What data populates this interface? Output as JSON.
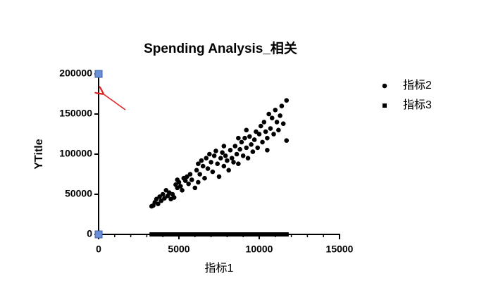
{
  "chart_data": {
    "type": "scatter",
    "title": "Spending  Analysis_相关",
    "x_label": "指标1",
    "y_label": "YTitle",
    "xlim": [
      0,
      15000
    ],
    "xticks": [
      0,
      5000,
      10000,
      15000
    ],
    "xminorticks": [
      1000,
      2000,
      3000,
      4000,
      6000,
      7000,
      8000,
      9000,
      11000,
      12000,
      13000,
      14000
    ],
    "ylim": [
      0,
      200000
    ],
    "yticks": [
      0,
      50000,
      100000,
      150000,
      200000
    ],
    "grid": false,
    "legend": "right",
    "series": [
      {
        "name": "指标2",
        "color": "#000000",
        "marker": "circle",
        "x": [
          3400,
          3500,
          3600,
          3700,
          3800,
          3900,
          4000,
          4100,
          4200,
          4300,
          4400,
          4500,
          4600,
          4700,
          4800,
          4900,
          5000,
          5100,
          5200,
          5300,
          5400,
          5500,
          5600,
          5700,
          5800,
          6000,
          6100,
          6200,
          6300,
          6400,
          6500,
          6600,
          6700,
          6800,
          6900,
          7000,
          7100,
          7200,
          7300,
          7400,
          7500,
          7600,
          7700,
          7800,
          7900,
          8000,
          8100,
          8200,
          8300,
          8400,
          8500,
          8600,
          8700,
          8800,
          8900,
          9000,
          9100,
          9200,
          9300,
          9400,
          9500,
          9600,
          9700,
          9800,
          9900,
          10000,
          10100,
          10200,
          10300,
          10400,
          10500,
          10600,
          10700,
          10800,
          10900,
          11000,
          11100,
          11200,
          11300,
          11400,
          11500,
          11700,
          11700,
          10500,
          9200,
          8700,
          7800,
          6200,
          4900,
          3300
        ],
        "values": [
          36000,
          40000,
          44000,
          38000,
          47000,
          42000,
          50000,
          45000,
          55000,
          48000,
          52000,
          44000,
          50000,
          46000,
          62000,
          58000,
          65000,
          60000,
          55000,
          70000,
          67000,
          72000,
          63000,
          75000,
          68000,
          58000,
          80000,
          88000,
          75000,
          92000,
          85000,
          70000,
          95000,
          82000,
          100000,
          90000,
          78000,
          98000,
          104000,
          88000,
          72000,
          95000,
          102000,
          85000,
          98000,
          92000,
          80000,
          105000,
          95000,
          90000,
          110000,
          100000,
          88000,
          106000,
          115000,
          98000,
          120000,
          108000,
          95000,
          122000,
          112000,
          103000,
          118000,
          128000,
          108000,
          125000,
          135000,
          115000,
          140000,
          128000,
          120000,
          150000,
          132000,
          145000,
          125000,
          155000,
          140000,
          130000,
          148000,
          160000,
          138000,
          167000,
          117000,
          105000,
          130000,
          120000,
          110000,
          65000,
          68000,
          35000
        ]
      },
      {
        "name": "指标3",
        "color": "#000000",
        "marker": "square",
        "x": [
          3400,
          3500,
          3600,
          3700,
          3800,
          3900,
          4000,
          4100,
          4200,
          4300,
          4400,
          4500,
          4600,
          4700,
          4800,
          4900,
          5000,
          5100,
          5200,
          5300,
          5400,
          5500,
          5600,
          5700,
          5800,
          6000,
          6100,
          6200,
          6300,
          6400,
          6500,
          6600,
          6700,
          6800,
          6900,
          7000,
          7100,
          7200,
          7300,
          7400,
          7500,
          7600,
          7700,
          7800,
          7900,
          8000,
          8100,
          8200,
          8300,
          8400,
          8500,
          8600,
          8700,
          8800,
          8900,
          9000,
          9100,
          9200,
          9300,
          9400,
          9500,
          9600,
          9700,
          9800,
          9900,
          10000,
          10100,
          10200,
          10300,
          10400,
          10500,
          10600,
          10700,
          10800,
          10900,
          11000,
          11100,
          11200,
          11300,
          11400,
          11500,
          11700,
          11700,
          10500,
          9200,
          8700,
          7800,
          6200,
          4900,
          3300
        ],
        "values": [
          0,
          0,
          0,
          0,
          0,
          0,
          0,
          0,
          0,
          0,
          0,
          0,
          0,
          0,
          0,
          0,
          0,
          0,
          0,
          0,
          0,
          0,
          0,
          0,
          0,
          0,
          0,
          0,
          0,
          0,
          0,
          0,
          0,
          0,
          0,
          0,
          0,
          0,
          0,
          0,
          0,
          0,
          0,
          0,
          0,
          0,
          0,
          0,
          0,
          0,
          0,
          0,
          0,
          0,
          0,
          0,
          0,
          0,
          0,
          0,
          0,
          0,
          0,
          0,
          0,
          0,
          0,
          0,
          0,
          0,
          0,
          0,
          0,
          0,
          0,
          0,
          0,
          0,
          0,
          0,
          0,
          0,
          0,
          0,
          0,
          0,
          0,
          0,
          0,
          0
        ]
      }
    ]
  }
}
